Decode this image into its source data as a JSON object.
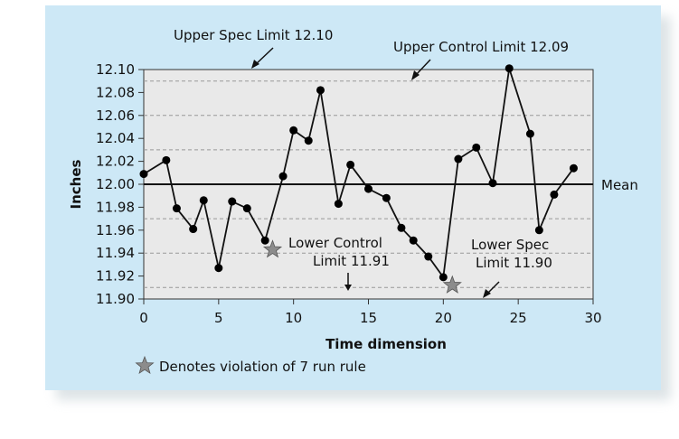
{
  "chart_data": {
    "type": "line",
    "xlabel": "Time dimension",
    "ylabel": "Inches",
    "xlim": [
      0,
      30
    ],
    "ylim": [
      11.9,
      12.1
    ],
    "xticks": [
      0,
      5,
      10,
      15,
      20,
      25,
      30
    ],
    "yticks": [
      "11.90",
      "11.92",
      "11.94",
      "11.96",
      "11.98",
      "12.00",
      "12.02",
      "12.04",
      "12.06",
      "12.08",
      "12.10"
    ],
    "dashed_lines": [
      11.91,
      11.94,
      11.97,
      12.03,
      12.06,
      12.09
    ],
    "mean": 12.0,
    "series": [
      {
        "x": [
          0,
          1.5,
          2.2,
          3.3,
          4,
          5,
          5.9,
          6.9,
          8.1,
          9.3,
          10,
          11,
          11.8,
          13,
          13.8,
          15,
          16.2,
          17.2,
          18,
          19,
          20,
          21,
          22.2,
          23.3,
          24.4,
          25.8,
          26.4,
          27.4,
          28.7
        ],
        "values": [
          12.009,
          12.021,
          11.979,
          11.961,
          11.986,
          11.927,
          11.985,
          11.979,
          11.951,
          12.007,
          12.047,
          12.038,
          12.082,
          11.983,
          12.017,
          11.996,
          11.988,
          11.962,
          11.951,
          11.937,
          11.919,
          12.022,
          12.032,
          12.001,
          12.101,
          12.044,
          11.96,
          11.991,
          12.014
        ]
      }
    ],
    "violations": [
      {
        "x": 8.6,
        "y": 11.943
      },
      {
        "x": 20.6,
        "y": 11.912
      }
    ],
    "annotations": {
      "upper_spec": "Upper Spec Limit 12.10",
      "upper_control": "Upper Control Limit 12.09",
      "mean": "Mean",
      "lower_control_1": "Lower Control",
      "lower_control_2": "Limit 11.91",
      "lower_spec_1": "Lower Spec",
      "lower_spec_2": "Limit 11.90"
    },
    "legend": "Denotes violation of 7 run rule"
  }
}
